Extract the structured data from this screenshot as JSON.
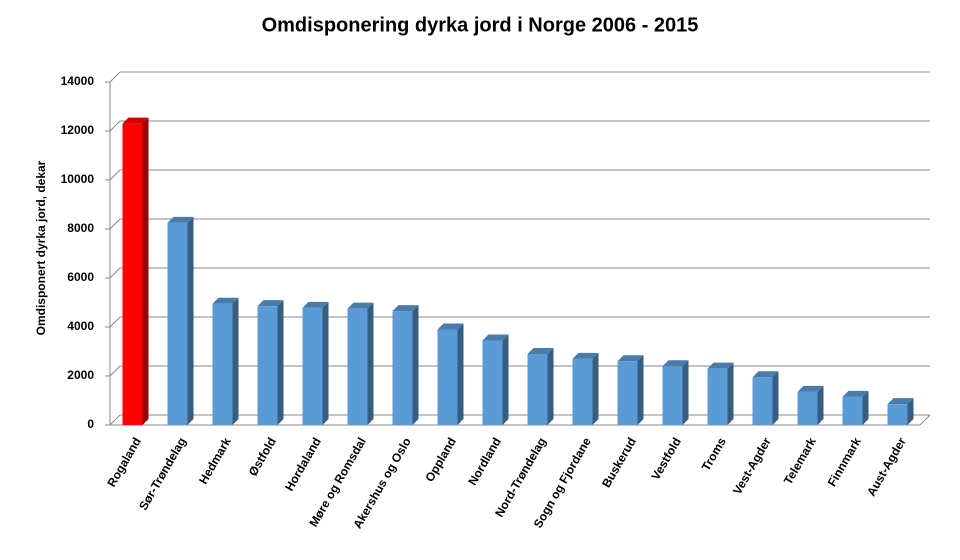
{
  "chart_data": {
    "type": "bar3d",
    "title": "Omdisponering dyrka jord i Norge 2006 - 2015",
    "y_label": "Omdisponert dyrka jord, dekar",
    "categories": [
      "Rogaland",
      "Sør-Trøndelag",
      "Hedmark",
      "Østfold",
      "Hordaland",
      "Møre og Romsdal",
      "Akershus og Oslo",
      "Oppland",
      "Nordland",
      "Nord-Trøndelag",
      "Sogn og Fjordane",
      "Buskerud",
      "Vestfold",
      "Troms",
      "Vest-Agder",
      "Telemark",
      "Finnmark",
      "Aust-Agder"
    ],
    "values": [
      12300,
      8250,
      4950,
      4850,
      4780,
      4750,
      4650,
      3900,
      3450,
      2900,
      2700,
      2600,
      2400,
      2300,
      1950,
      1350,
      1150,
      850
    ],
    "colors": [
      "#ff0000",
      "#5b9bd5",
      "#5b9bd5",
      "#5b9bd5",
      "#5b9bd5",
      "#5b9bd5",
      "#5b9bd5",
      "#5b9bd5",
      "#5b9bd5",
      "#5b9bd5",
      "#5b9bd5",
      "#5b9bd5",
      "#5b9bd5",
      "#5b9bd5",
      "#5b9bd5",
      "#5b9bd5",
      "#5b9bd5",
      "#5b9bd5"
    ],
    "ylim": [
      0,
      14000
    ],
    "yticks": [
      0,
      2000,
      4000,
      6000,
      8000,
      10000,
      12000,
      14000
    ],
    "grid": true
  }
}
